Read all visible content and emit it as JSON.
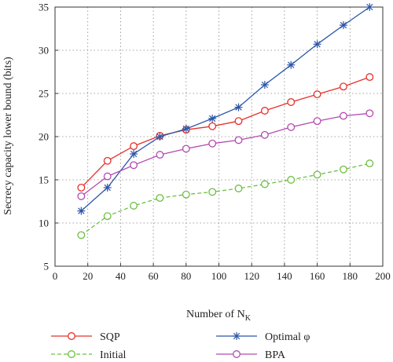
{
  "chart_data": {
    "type": "line",
    "xlabel": "Number of N",
    "xlabel_subscript": "K",
    "ylabel": "Secrecy capacity lower bound (bits)",
    "xlim": [
      0,
      200
    ],
    "ylim": [
      5,
      35
    ],
    "xticks": [
      0,
      20,
      40,
      60,
      80,
      100,
      120,
      140,
      160,
      180,
      200
    ],
    "yticks": [
      5,
      10,
      15,
      20,
      25,
      30,
      35
    ],
    "grid": true,
    "legend_position": "bottom, outside plot (2 columns)",
    "x": [
      16,
      32,
      48,
      64,
      80,
      96,
      112,
      128,
      144,
      160,
      176,
      192
    ],
    "series": [
      {
        "name": "SQP",
        "color": "#e8302a",
        "marker": "circle",
        "dash": "solid",
        "values": [
          14.1,
          17.2,
          18.9,
          20.1,
          20.8,
          21.2,
          21.8,
          23.0,
          24.0,
          24.9,
          25.8,
          26.9
        ]
      },
      {
        "name": "Optimal φ",
        "color": "#2b56a8",
        "marker": "star",
        "dash": "solid",
        "values": [
          11.4,
          14.1,
          18.0,
          20.0,
          20.9,
          22.1,
          23.4,
          26.0,
          28.3,
          30.7,
          32.9,
          35.0
        ]
      },
      {
        "name": "Initial",
        "color": "#6dbf44",
        "marker": "circle",
        "dash": "dashed",
        "values": [
          8.6,
          10.8,
          12.0,
          12.9,
          13.3,
          13.6,
          14.0,
          14.5,
          15.0,
          15.6,
          16.2,
          16.9
        ]
      },
      {
        "name": "BPA",
        "color": "#b54ab0",
        "marker": "circle",
        "dash": "solid",
        "values": [
          13.1,
          15.4,
          16.7,
          17.9,
          18.6,
          19.2,
          19.6,
          20.2,
          21.1,
          21.8,
          22.4,
          22.7
        ]
      }
    ]
  }
}
